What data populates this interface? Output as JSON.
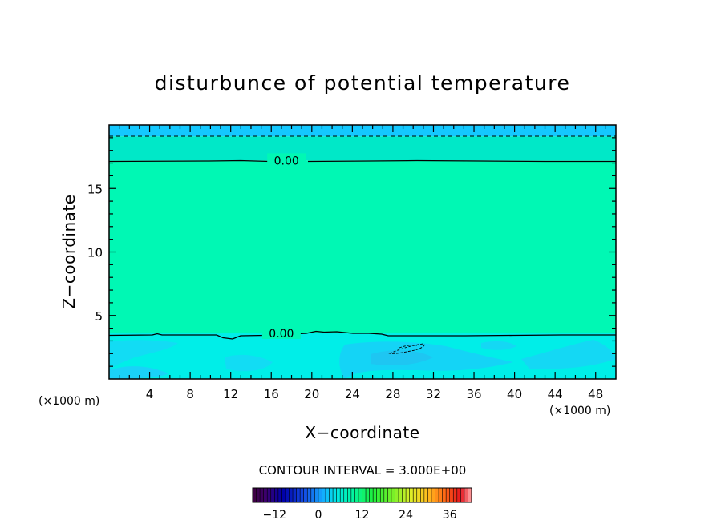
{
  "chart_data": {
    "type": "heatmap",
    "title": "disturbunce of potential temperature",
    "xlabel": "X−coordinate",
    "ylabel": "Z−coordinate",
    "x_unit_label": "(×1000 m)",
    "x_unit_label_left": "(×1000 m)",
    "xlim": [
      0,
      50
    ],
    "ylim": [
      0,
      20
    ],
    "x_ticks": [
      4,
      8,
      12,
      16,
      20,
      24,
      28,
      32,
      36,
      40,
      44,
      48
    ],
    "y_ticks": [
      5,
      10,
      15
    ],
    "grid": false,
    "contour_interval_text": "CONTOUR INTERVAL = 3.000E+00",
    "contour_labels": [
      {
        "text": "0.00",
        "x": 17.5,
        "y": 17.2
      },
      {
        "text": "0.00",
        "x": 17.0,
        "y": 3.6
      }
    ],
    "regions": [
      {
        "name": "upper-layer",
        "z_range": [
          19.1,
          20
        ],
        "color": "#14c8ff"
      },
      {
        "name": "upper-band",
        "z_range": [
          17.2,
          19.1
        ],
        "color": "#00e8c8"
      },
      {
        "name": "middle-layer",
        "z_range": [
          3.6,
          17.2
        ],
        "color": "#00f8b4"
      },
      {
        "name": "lower-layer",
        "z_range": [
          0,
          3.6
        ],
        "color": "#00eee8"
      }
    ],
    "colorbar": {
      "range": [
        -18,
        42
      ],
      "tick_values": [
        -12,
        0,
        12,
        24,
        36
      ],
      "tick_labels": [
        "−12",
        "0",
        "12",
        "24",
        "36"
      ]
    }
  }
}
